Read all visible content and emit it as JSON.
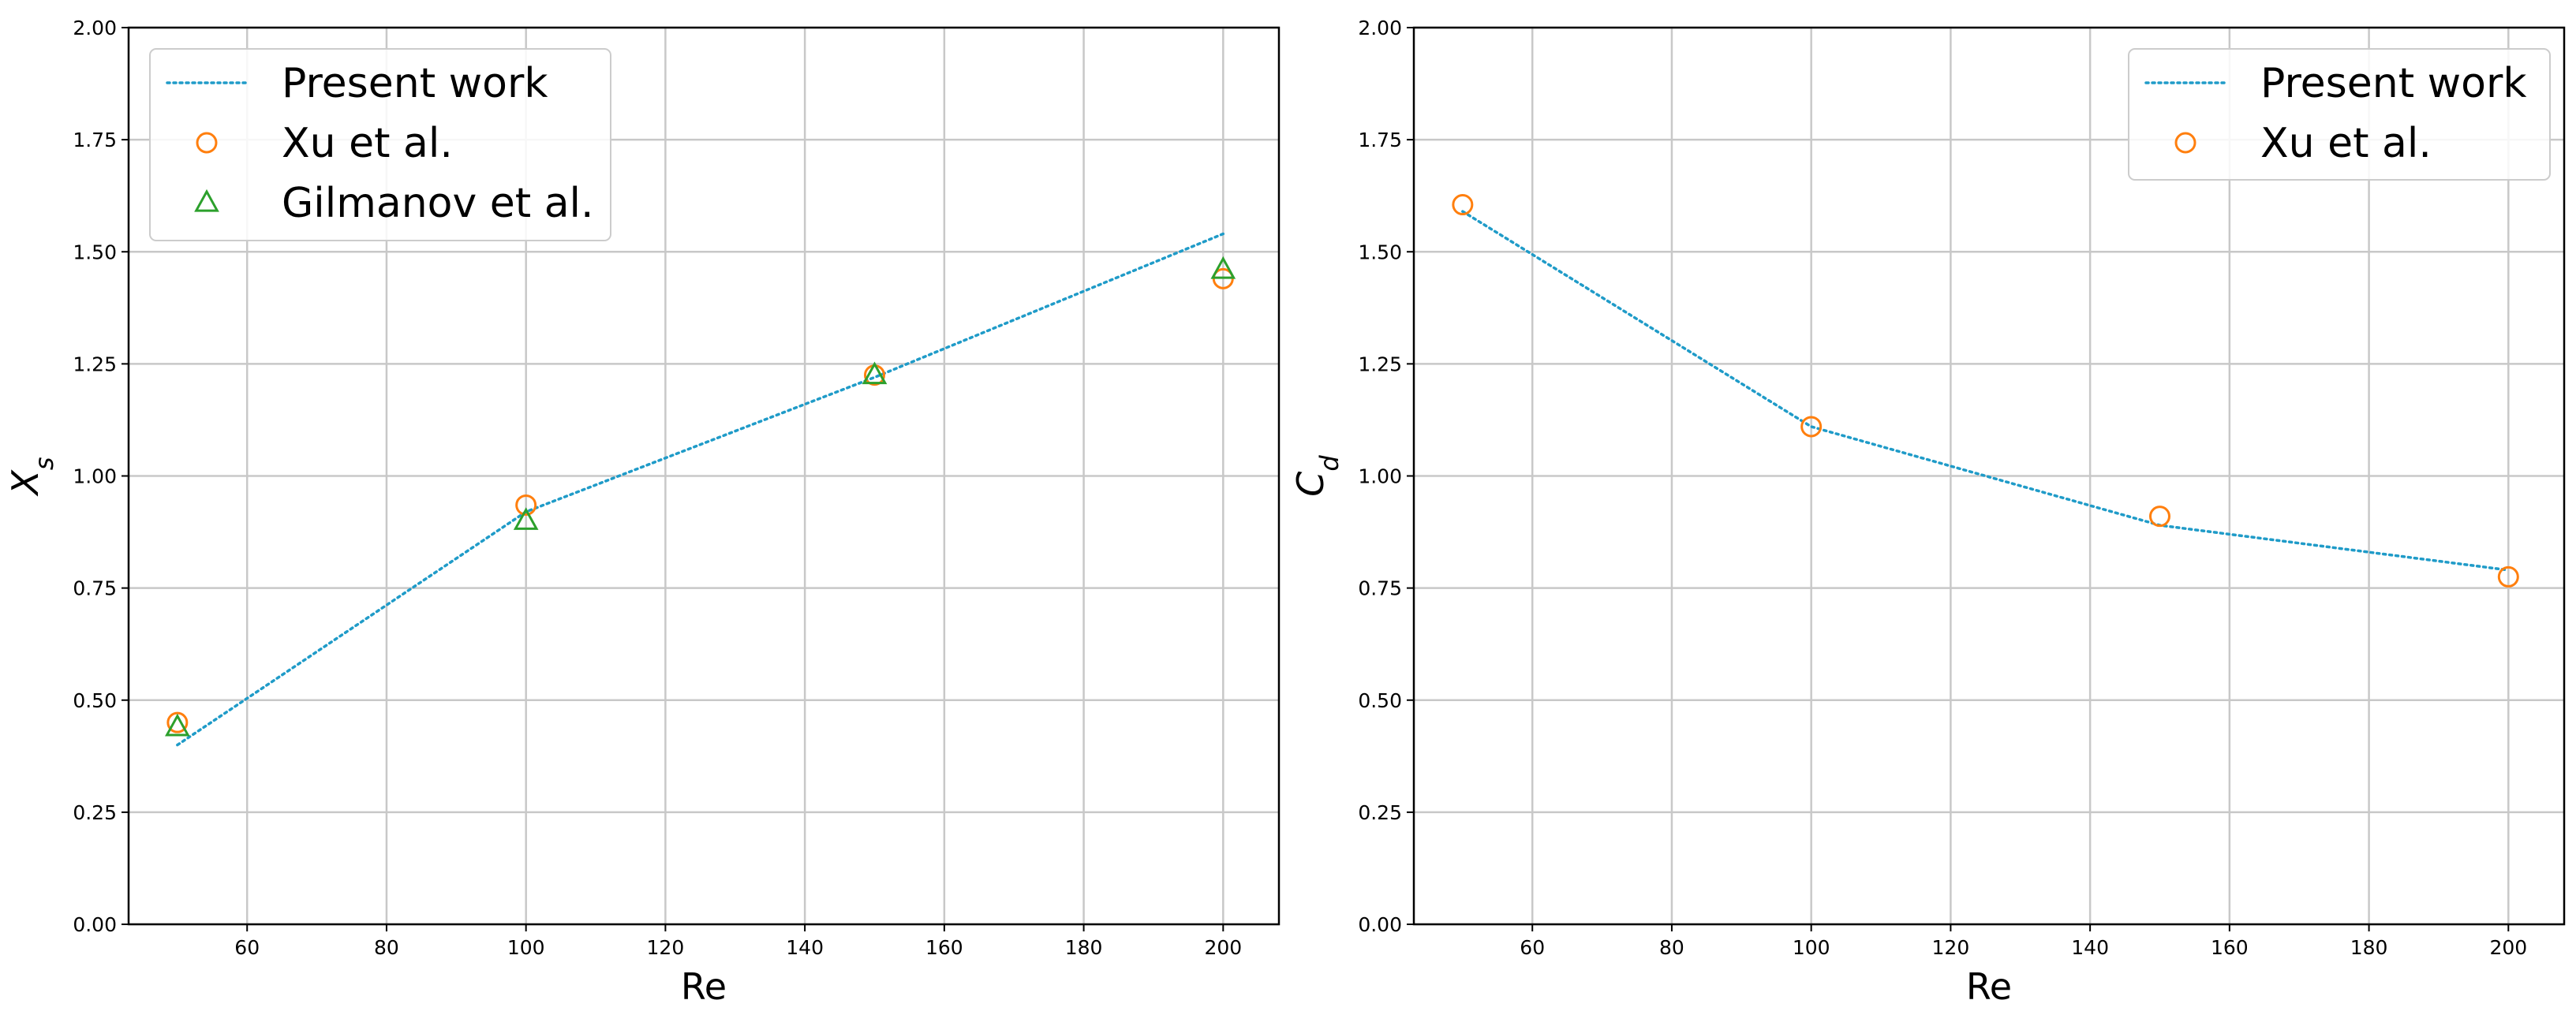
{
  "colors": {
    "present": "#1f9bc8",
    "xu": "#ff7f0e",
    "gilmanov": "#2ca02c",
    "grid": "#c8c8c8"
  },
  "chart_data": [
    {
      "type": "line",
      "xlabel": "Re",
      "ylabel": "X",
      "ylabel_sub": "s",
      "xlim": [
        43,
        208
      ],
      "ylim": [
        0,
        2.0
      ],
      "xticks": [
        60,
        80,
        100,
        120,
        140,
        160,
        180,
        200
      ],
      "xtick_labels": [
        "60",
        "80",
        "100",
        "120",
        "140",
        "160",
        "180",
        "200"
      ],
      "yticks": [
        0,
        0.25,
        0.5,
        0.75,
        1.0,
        1.25,
        1.5,
        1.75,
        2.0
      ],
      "ytick_labels": [
        "0.00",
        "0.25",
        "0.50",
        "0.75",
        "1.00",
        "1.25",
        "1.50",
        "1.75",
        "2.00"
      ],
      "grid": true,
      "legend_position": "top-left",
      "series": [
        {
          "name": "Present work",
          "style": "dotted-line",
          "color_key": "present",
          "x": [
            50,
            100,
            150,
            200
          ],
          "y": [
            0.4,
            0.92,
            1.22,
            1.54
          ]
        },
        {
          "name": "Xu et al.",
          "style": "circle",
          "color_key": "xu",
          "x": [
            50,
            100,
            150,
            200
          ],
          "y": [
            0.45,
            0.935,
            1.225,
            1.44
          ]
        },
        {
          "name": "Gilmanov et al.",
          "style": "triangle",
          "color_key": "gilmanov",
          "x": [
            50,
            100,
            150,
            200
          ],
          "y": [
            0.44,
            0.9,
            1.225,
            1.46
          ]
        }
      ]
    },
    {
      "type": "line",
      "xlabel": "Re",
      "ylabel": "C",
      "ylabel_sub": "d",
      "xlim": [
        43,
        208
      ],
      "ylim": [
        0,
        2.0
      ],
      "xticks": [
        60,
        80,
        100,
        120,
        140,
        160,
        180,
        200
      ],
      "xtick_labels": [
        "60",
        "80",
        "100",
        "120",
        "140",
        "160",
        "180",
        "200"
      ],
      "yticks": [
        0,
        0.25,
        0.5,
        0.75,
        1.0,
        1.25,
        1.5,
        1.75,
        2.0
      ],
      "ytick_labels": [
        "0.00",
        "0.25",
        "0.50",
        "0.75",
        "1.00",
        "1.25",
        "1.50",
        "1.75",
        "2.00"
      ],
      "grid": true,
      "legend_position": "top-right",
      "series": [
        {
          "name": "Present work",
          "style": "dotted-line",
          "color_key": "present",
          "x": [
            50,
            100,
            150,
            200
          ],
          "y": [
            1.59,
            1.11,
            0.89,
            0.79
          ]
        },
        {
          "name": "Xu et al.",
          "style": "circle",
          "color_key": "xu",
          "x": [
            50,
            100,
            150,
            200
          ],
          "y": [
            1.605,
            1.11,
            0.91,
            0.775
          ]
        }
      ]
    }
  ]
}
